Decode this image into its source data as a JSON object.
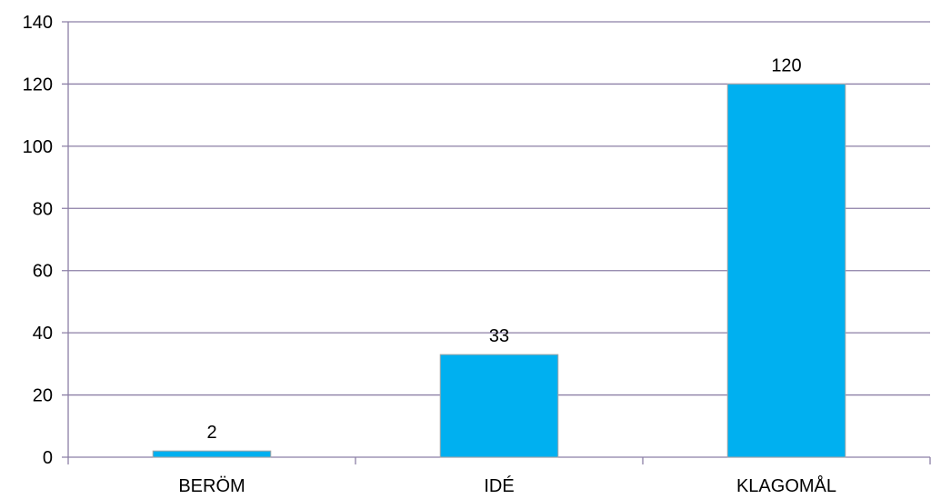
{
  "chart_data": {
    "type": "bar",
    "categories": [
      "BERÖM",
      "IDÉ",
      "KLAGOMÅL"
    ],
    "values": [
      2,
      33,
      120
    ],
    "data_labels": [
      "2",
      "33",
      "120"
    ],
    "title": "",
    "xlabel": "",
    "ylabel": "",
    "ylim": [
      0,
      140
    ],
    "y_ticks": [
      0,
      20,
      40,
      60,
      80,
      100,
      120,
      140
    ],
    "grid": true,
    "legend": "none",
    "bar_color": "#00b0f0",
    "gridline_color": "#8c7fa6"
  }
}
